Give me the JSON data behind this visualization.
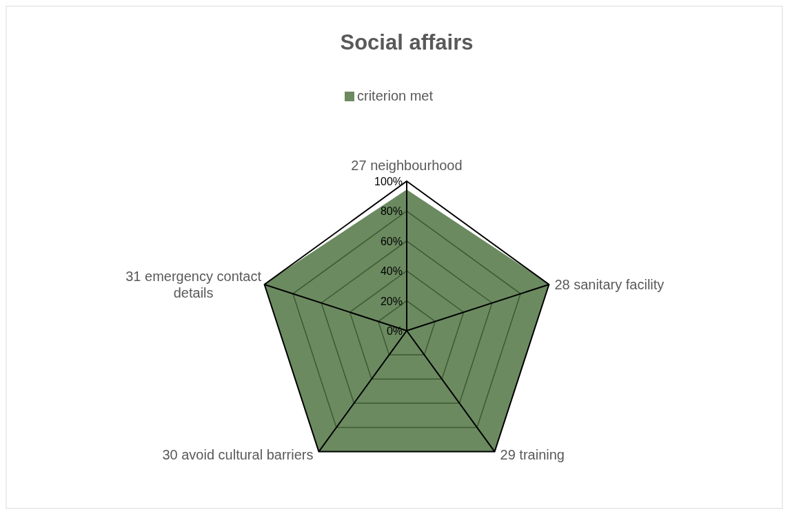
{
  "chart_data": {
    "type": "radar",
    "title": "Social affairs",
    "categories": [
      "27 neighbourhood",
      "28 sanitary facility",
      "29 training",
      "30 avoid cultural barriers",
      "31 emergency contact details"
    ],
    "series": [
      {
        "name": "criterion met",
        "color": "#6b8a60",
        "values": [
          0.94,
          1,
          1,
          1,
          1
        ]
      }
    ],
    "ylim": [
      0,
      1
    ],
    "yticks": [
      {
        "value": 0,
        "label": "0%"
      },
      {
        "value": 0.2,
        "label": "20%"
      },
      {
        "value": 0.4,
        "label": "40%"
      },
      {
        "value": 0.6,
        "label": "60%"
      },
      {
        "value": 0.8,
        "label": "80%"
      },
      {
        "value": 1,
        "label": "100%"
      }
    ],
    "grid": true,
    "legend": "top"
  }
}
